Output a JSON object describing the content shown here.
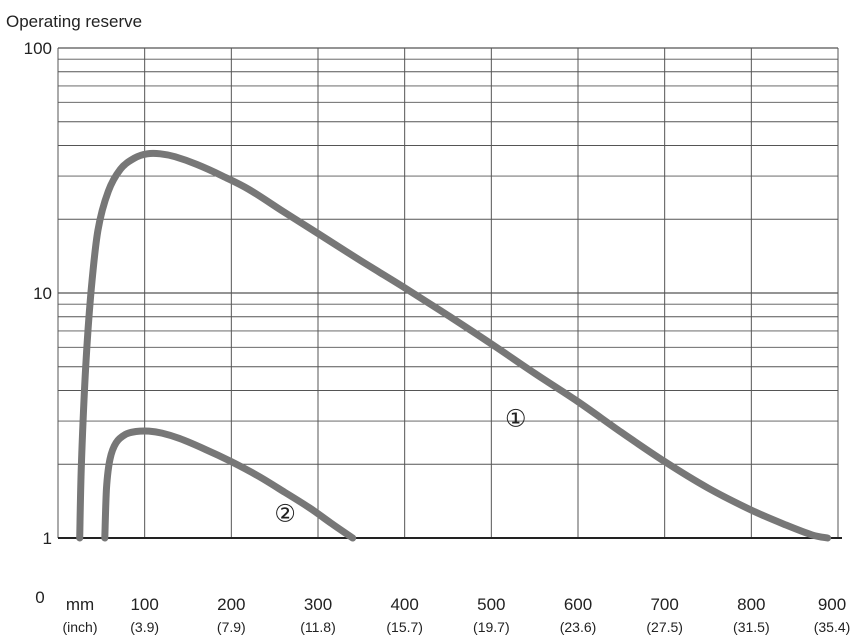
{
  "chart_data": {
    "type": "line",
    "title": "",
    "ylabel": "Operating reserve",
    "xlabel": "",
    "x_unit": "mm",
    "x_unit_secondary": "(inch)",
    "ylim": [
      1,
      100
    ],
    "yscale": "log",
    "y_ticks": [
      {
        "value": 1,
        "label": "1"
      },
      {
        "value": 10,
        "label": "10"
      },
      {
        "value": 100,
        "label": "100"
      }
    ],
    "y_zero_label": "0",
    "xlim": [
      0,
      900
    ],
    "x_ticks": [
      {
        "value": 100,
        "label": "100",
        "sub": "(3.9)"
      },
      {
        "value": 200,
        "label": "200",
        "sub": "(7.9)"
      },
      {
        "value": 300,
        "label": "300",
        "sub": "(11.8)"
      },
      {
        "value": 400,
        "label": "400",
        "sub": "(15.7)"
      },
      {
        "value": 500,
        "label": "500",
        "sub": "(19.7)"
      },
      {
        "value": 600,
        "label": "600",
        "sub": "(23.6)"
      },
      {
        "value": 700,
        "label": "700",
        "sub": "(27.5)"
      },
      {
        "value": 800,
        "label": "800",
        "sub": "(31.5)"
      },
      {
        "value": 900,
        "label": "900",
        "sub": "(35.4)"
      }
    ],
    "grid": true,
    "series": [
      {
        "name": "①",
        "color": "#777777",
        "points": [
          [
            25,
            1
          ],
          [
            27,
            2
          ],
          [
            32,
            5
          ],
          [
            38,
            10
          ],
          [
            46,
            18
          ],
          [
            58,
            26
          ],
          [
            72,
            32
          ],
          [
            88,
            35.5
          ],
          [
            103,
            37
          ],
          [
            118,
            37
          ],
          [
            135,
            36
          ],
          [
            160,
            33.5
          ],
          [
            190,
            30
          ],
          [
            220,
            26.5
          ],
          [
            260,
            21.5
          ],
          [
            300,
            17.5
          ],
          [
            350,
            13.5
          ],
          [
            400,
            10.5
          ],
          [
            450,
            8.1
          ],
          [
            500,
            6.2
          ],
          [
            550,
            4.7
          ],
          [
            600,
            3.6
          ],
          [
            650,
            2.7
          ],
          [
            700,
            2.05
          ],
          [
            750,
            1.6
          ],
          [
            800,
            1.3
          ],
          [
            840,
            1.13
          ],
          [
            870,
            1.03
          ],
          [
            888,
            1
          ]
        ]
      },
      {
        "name": "②",
        "color": "#777777",
        "points": [
          [
            54,
            1
          ],
          [
            56,
            1.6
          ],
          [
            60,
            2.1
          ],
          [
            67,
            2.45
          ],
          [
            78,
            2.65
          ],
          [
            90,
            2.72
          ],
          [
            105,
            2.73
          ],
          [
            120,
            2.68
          ],
          [
            140,
            2.55
          ],
          [
            170,
            2.3
          ],
          [
            200,
            2.05
          ],
          [
            230,
            1.8
          ],
          [
            260,
            1.55
          ],
          [
            290,
            1.33
          ],
          [
            315,
            1.15
          ],
          [
            340,
            1
          ]
        ]
      }
    ],
    "annotations": [
      {
        "text": "①",
        "series": 0,
        "x": 528,
        "y": 3.1
      },
      {
        "text": "②",
        "series": 1,
        "x": 262,
        "y": 1.27
      }
    ]
  }
}
